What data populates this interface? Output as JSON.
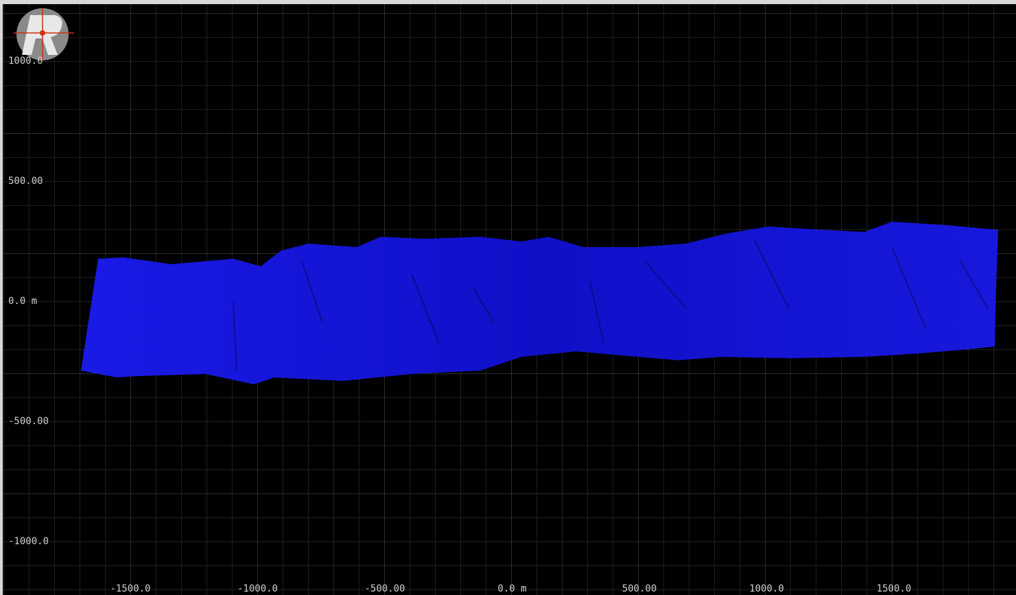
{
  "viewport": {
    "x_labels": [
      "-1500.0",
      "-1000.0",
      "-500.00",
      "0.0 m",
      "500.00",
      "1000.0",
      "1500.0"
    ],
    "y_labels": [
      "1000.0",
      "500.00",
      "0.0 m",
      "-500.00",
      "-1000.0"
    ]
  }
}
